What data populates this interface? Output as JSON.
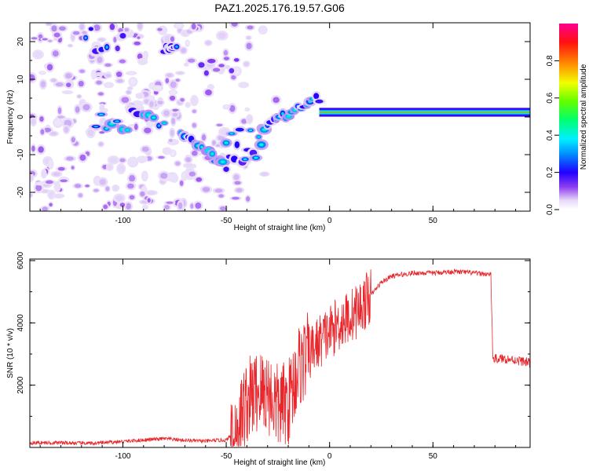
{
  "title": "PAZ1.2025.176.19.57.G06",
  "chart_data": [
    {
      "type": "heatmap",
      "xlabel": "Height of straight line (km)",
      "ylabel": "Frequency (Hz)",
      "xlim": [
        -145,
        97
      ],
      "ylim": [
        -25,
        25
      ],
      "xticks": [
        -100,
        -50,
        0,
        50
      ],
      "yticks": [
        -20,
        -10,
        0,
        10,
        20
      ],
      "colorbar": {
        "label": "Normalized spectral amplitude",
        "range": [
          0,
          1
        ],
        "ticks": [
          0.0,
          0.2,
          0.4,
          0.6,
          0.8
        ],
        "colormap": [
          "#ffffff",
          "#dcc8f5",
          "#7b2cf0",
          "#3a00ff",
          "#0050ff",
          "#00d8ff",
          "#00ff8a",
          "#9cff00",
          "#ffff00",
          "#ff8a00",
          "#ff1a1a",
          "#ff0080"
        ]
      },
      "features": [
        {
          "name": "scattered noise",
          "x_range": [
            -145,
            -20
          ],
          "f_range": [
            -25,
            25
          ],
          "amplitude": 0.08
        },
        {
          "name": "patch",
          "x_range": [
            -118,
            -100
          ],
          "f_range": [
            17,
            24
          ],
          "amplitude": 0.2
        },
        {
          "name": "isolated burst",
          "x_range": [
            -80,
            -74
          ],
          "f_range": [
            17,
            19
          ],
          "amplitude": 0.2
        },
        {
          "name": "upper streak",
          "x_range": [
            -62,
            -45
          ],
          "f_range": [
            11,
            16
          ],
          "amplitude": 0.15
        },
        {
          "name": "blobs",
          "x_range": [
            -113,
            -80
          ],
          "f_range": [
            -4,
            2
          ],
          "amplitude": 0.3
        },
        {
          "name": "blobs",
          "x_range": [
            -72,
            -50
          ],
          "f_range": [
            -13,
            -4
          ],
          "amplitude": 0.3
        },
        {
          "name": "blobs",
          "x_range": [
            -50,
            -33
          ],
          "f_range": [
            -12,
            -2
          ],
          "amplitude": 0.25
        },
        {
          "name": "rising trace",
          "x_range": [
            -33,
            -5
          ],
          "f_range": [
            -3,
            5
          ],
          "amplitude": 0.3
        },
        {
          "name": "carrier line",
          "x_range": [
            -5,
            97
          ],
          "f_range": [
            0.5,
            2.0
          ],
          "amplitude": 0.9
        }
      ]
    },
    {
      "type": "line",
      "xlabel": "Height of straight line (km)",
      "ylabel": "SNR (10 * v/v)",
      "xlim": [
        -145,
        97
      ],
      "ylim": [
        0,
        6050
      ],
      "xticks": [
        -100,
        -50,
        0,
        50
      ],
      "yticks": [
        2000,
        4000,
        6000
      ],
      "color": "#e8262b",
      "series": [
        {
          "x": [
            -145,
            -130,
            -115,
            -100,
            -90,
            -80,
            -70,
            -60,
            -55,
            -50,
            -45,
            -40,
            -35,
            -30,
            -25,
            -20,
            -15,
            -10,
            -5,
            0,
            5,
            10,
            15,
            20,
            25,
            30,
            40,
            50,
            60,
            70,
            78,
            79,
            85,
            90,
            95,
            97
          ],
          "y": [
            150,
            150,
            130,
            190,
            240,
            280,
            230,
            200,
            230,
            230,
            600,
            1500,
            1800,
            1800,
            1300,
            1450,
            2600,
            3000,
            3400,
            3700,
            4000,
            4200,
            4500,
            4900,
            5300,
            5500,
            5600,
            5600,
            5650,
            5600,
            5550,
            2850,
            2850,
            2800,
            2750,
            2700
          ]
        }
      ]
    }
  ]
}
